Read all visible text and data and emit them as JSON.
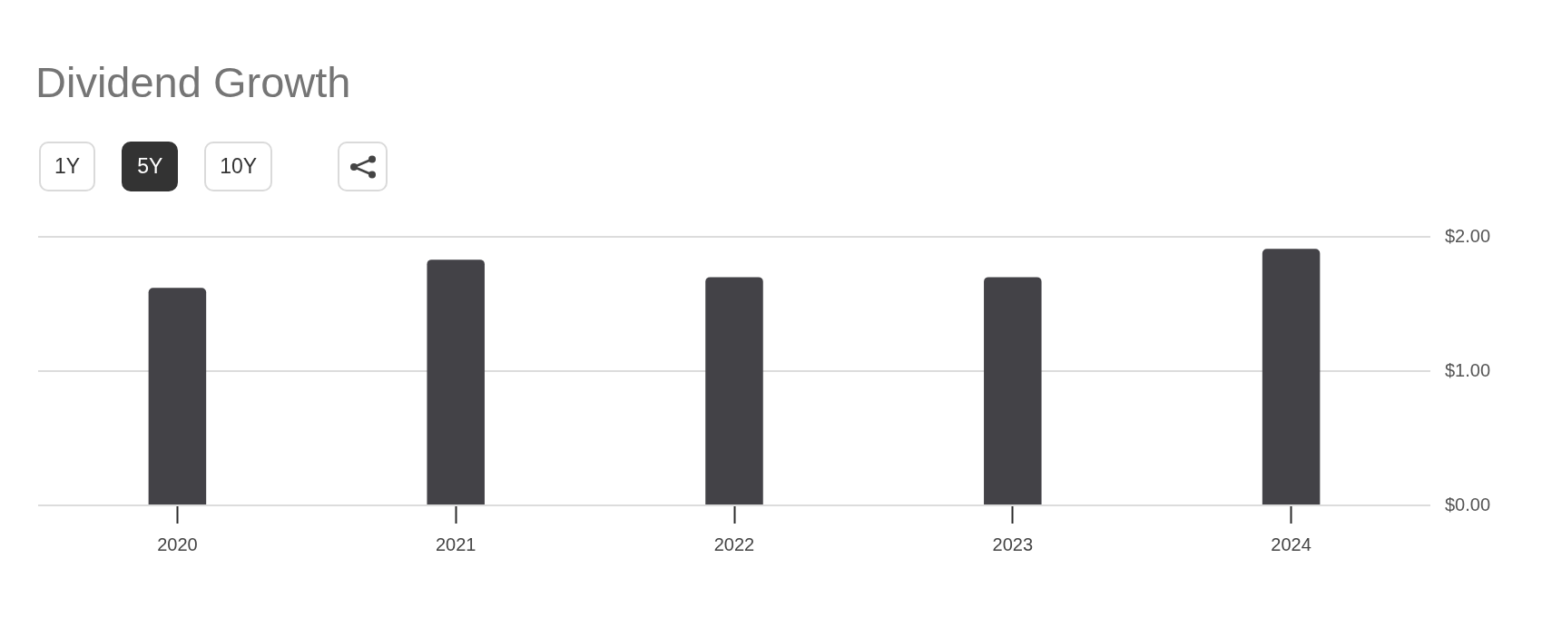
{
  "chart_data": {
    "type": "bar",
    "title": "Dividend Growth",
    "annotations": [
      "1Y",
      "5Y",
      "10Y"
    ],
    "categories": [
      "2020",
      "2021",
      "2022",
      "2023",
      "2024"
    ],
    "values": [
      1.62,
      1.83,
      1.7,
      1.7,
      1.91
    ],
    "color": "#434247",
    "ylim": [
      0,
      2
    ],
    "yticks": [
      {
        "value": 0,
        "label": "$0.00"
      },
      {
        "value": 1,
        "label": "$1.00"
      },
      {
        "value": 2,
        "label": "$2.00"
      }
    ],
    "grid": "y",
    "legend": false
  }
}
